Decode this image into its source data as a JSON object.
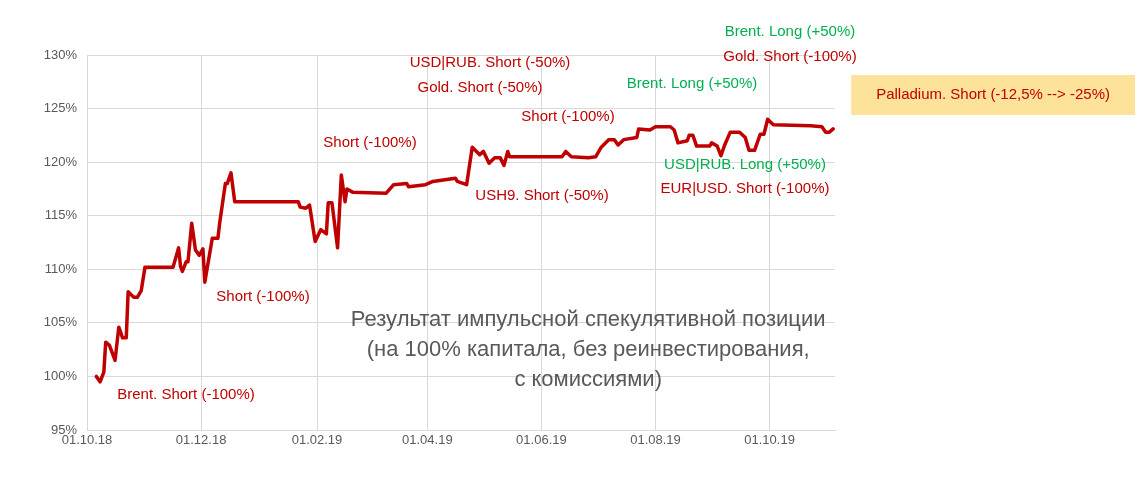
{
  "chart_data": {
    "type": "line",
    "title": "Результат импульсной спекулятивной позиции\n(на 100% капитала, без реинвестирования,\nс комиссиями)",
    "x": [
      "2018-10-06",
      "2018-10-08",
      "2018-10-10",
      "2018-10-11",
      "2018-10-13",
      "2018-10-16",
      "2018-10-18",
      "2018-10-20",
      "2018-10-22",
      "2018-10-23",
      "2018-10-26",
      "2018-10-28",
      "2018-10-30",
      "2018-11-01",
      "2018-11-16",
      "2018-11-19",
      "2018-11-20",
      "2018-11-21",
      "2018-11-23",
      "2018-11-24",
      "2018-11-26",
      "2018-11-28",
      "2018-11-30",
      "2018-12-02",
      "2018-12-03",
      "2018-12-07",
      "2018-12-10",
      "2018-12-11",
      "2018-12-14",
      "2018-12-15",
      "2018-12-17",
      "2018-12-19",
      "2019-01-22",
      "2019-01-23",
      "2019-01-26",
      "2019-01-28",
      "2019-01-31",
      "2019-02-03",
      "2019-02-06",
      "2019-02-07",
      "2019-02-09",
      "2019-02-12",
      "2019-02-14",
      "2019-02-16",
      "2019-02-17",
      "2019-02-20",
      "2019-03-10",
      "2019-03-14",
      "2019-03-21",
      "2019-03-22",
      "2019-03-31",
      "2019-04-04",
      "2019-04-16",
      "2019-04-17",
      "2019-04-22",
      "2019-04-25",
      "2019-04-29",
      "2019-05-01",
      "2019-05-04",
      "2019-05-07",
      "2019-05-10",
      "2019-05-12",
      "2019-05-14",
      "2019-05-15",
      "2019-06-12",
      "2019-06-14",
      "2019-06-17",
      "2019-06-26",
      "2019-06-30",
      "2019-07-03",
      "2019-07-07",
      "2019-07-10",
      "2019-07-12",
      "2019-07-15",
      "2019-07-22",
      "2019-07-23",
      "2019-07-29",
      "2019-08-01",
      "2019-08-09",
      "2019-08-11",
      "2019-08-13",
      "2019-08-18",
      "2019-08-19",
      "2019-08-21",
      "2019-08-23",
      "2019-08-30",
      "2019-08-31",
      "2019-09-03",
      "2019-09-05",
      "2019-09-07",
      "2019-09-10",
      "2019-09-15",
      "2019-09-18",
      "2019-09-20",
      "2019-09-23",
      "2019-09-26",
      "2019-09-28",
      "2019-09-30",
      "2019-10-03",
      "2019-10-23",
      "2019-10-29",
      "2019-10-31",
      "2019-11-02",
      "2019-11-04"
    ],
    "series": [
      {
        "color": "#c00000",
        "values": [
          100.0,
          99.5,
          100.4,
          103.2,
          102.9,
          101.5,
          104.6,
          103.6,
          103.6,
          107.9,
          107.4,
          107.4,
          108.0,
          110.2,
          110.2,
          112.0,
          110.3,
          109.8,
          110.7,
          110.7,
          114.3,
          111.8,
          111.3,
          111.9,
          108.8,
          112.9,
          112.9,
          114.4,
          118.0,
          118.0,
          119.0,
          116.3,
          116.3,
          115.8,
          115.7,
          116.0,
          112.6,
          113.7,
          113.3,
          116.2,
          116.2,
          112.0,
          118.8,
          116.3,
          117.5,
          117.2,
          117.1,
          117.9,
          118.0,
          117.7,
          117.9,
          118.2,
          118.5,
          118.2,
          117.9,
          121.4,
          120.7,
          121.0,
          119.9,
          120.4,
          120.4,
          119.7,
          121.0,
          120.5,
          120.5,
          121.0,
          120.5,
          120.4,
          120.5,
          121.4,
          122.1,
          122.1,
          121.6,
          122.1,
          122.3,
          123.1,
          123.0,
          123.3,
          123.3,
          123.0,
          121.8,
          122.0,
          122.5,
          122.5,
          121.5,
          121.5,
          121.8,
          121.5,
          120.6,
          121.6,
          122.8,
          122.8,
          122.3,
          121.1,
          121.1,
          122.6,
          122.6,
          124.0,
          123.5,
          123.4,
          123.3,
          122.8,
          122.8,
          123.1
        ]
      }
    ],
    "xlim": [
      "2018-10-01",
      "2019-11-05"
    ],
    "xticks": [
      {
        "value": "2018-10-01",
        "label": "01.10.18"
      },
      {
        "value": "2018-12-01",
        "label": "01.12.18"
      },
      {
        "value": "2019-02-01",
        "label": "01.02.19"
      },
      {
        "value": "2019-04-01",
        "label": "01.04.19"
      },
      {
        "value": "2019-06-01",
        "label": "01.06.19"
      },
      {
        "value": "2019-08-01",
        "label": "01.08.19"
      },
      {
        "value": "2019-10-01",
        "label": "01.10.19"
      }
    ],
    "ylim": [
      95,
      130
    ],
    "yticks": [
      {
        "value": 95,
        "label": "95%"
      },
      {
        "value": 100,
        "label": "100%"
      },
      {
        "value": 105,
        "label": "105%"
      },
      {
        "value": 110,
        "label": "110%"
      },
      {
        "value": 115,
        "label": "115%"
      },
      {
        "value": 120,
        "label": "120%"
      },
      {
        "value": 125,
        "label": "125%"
      },
      {
        "value": 130,
        "label": "130%"
      }
    ],
    "grid": true,
    "marker": "none",
    "annotations": [
      "Brent. Short (-100%)",
      "Short (-100%)",
      "Short (-100%)",
      "USD|RUB. Short (-50%)",
      "Gold. Short (-50%)",
      "Short (-100%)",
      "USH9. Short (-50%)",
      "Brent. Long (+50%)",
      "Brent. Long (+50%)",
      "Gold. Short (-100%)",
      "USD|RUB. Long (+50%)",
      "EUR|USD. Short (-100%)",
      "Palladium. Short (-12,5% --> -25%)"
    ]
  }
}
